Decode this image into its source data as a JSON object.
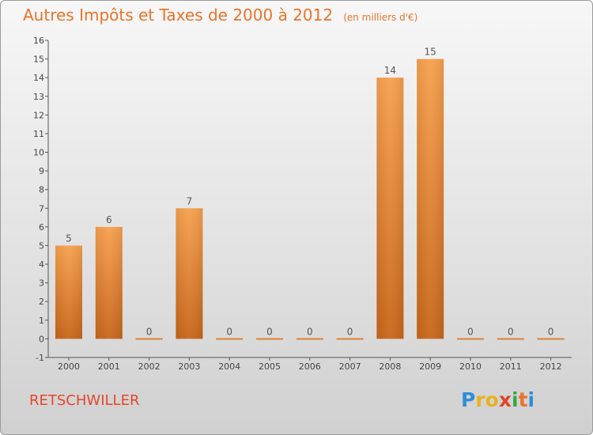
{
  "chart_data": {
    "type": "bar",
    "title": "Autres Impôts et Taxes de 2000 à 2012",
    "subtitle": "(en milliers d'€)",
    "categories": [
      "2000",
      "2001",
      "2002",
      "2003",
      "2004",
      "2005",
      "2006",
      "2007",
      "2008",
      "2009",
      "2010",
      "2011",
      "2012"
    ],
    "values": [
      5,
      6,
      0,
      7,
      0,
      0,
      0,
      0,
      14,
      15,
      0,
      0,
      0
    ],
    "data_labels": [
      "5",
      "6",
      "0",
      "7",
      "0",
      "0",
      "0",
      "0",
      "14",
      "15",
      "0",
      "0",
      "0"
    ],
    "ylim": [
      -1,
      16
    ],
    "yticks": [
      -1,
      0,
      1,
      2,
      3,
      4,
      5,
      6,
      7,
      8,
      9,
      10,
      11,
      12,
      13,
      14,
      15,
      16
    ],
    "grid": false,
    "colors": {
      "bar_light": "#f7a04e",
      "bar_dark": "#c8661a",
      "axis": "#555555",
      "text": "#444444"
    }
  },
  "footer": {
    "commune": "RETSCHWILLER",
    "logo": [
      "P",
      "ro",
      "x",
      "i",
      "t",
      "i"
    ]
  }
}
